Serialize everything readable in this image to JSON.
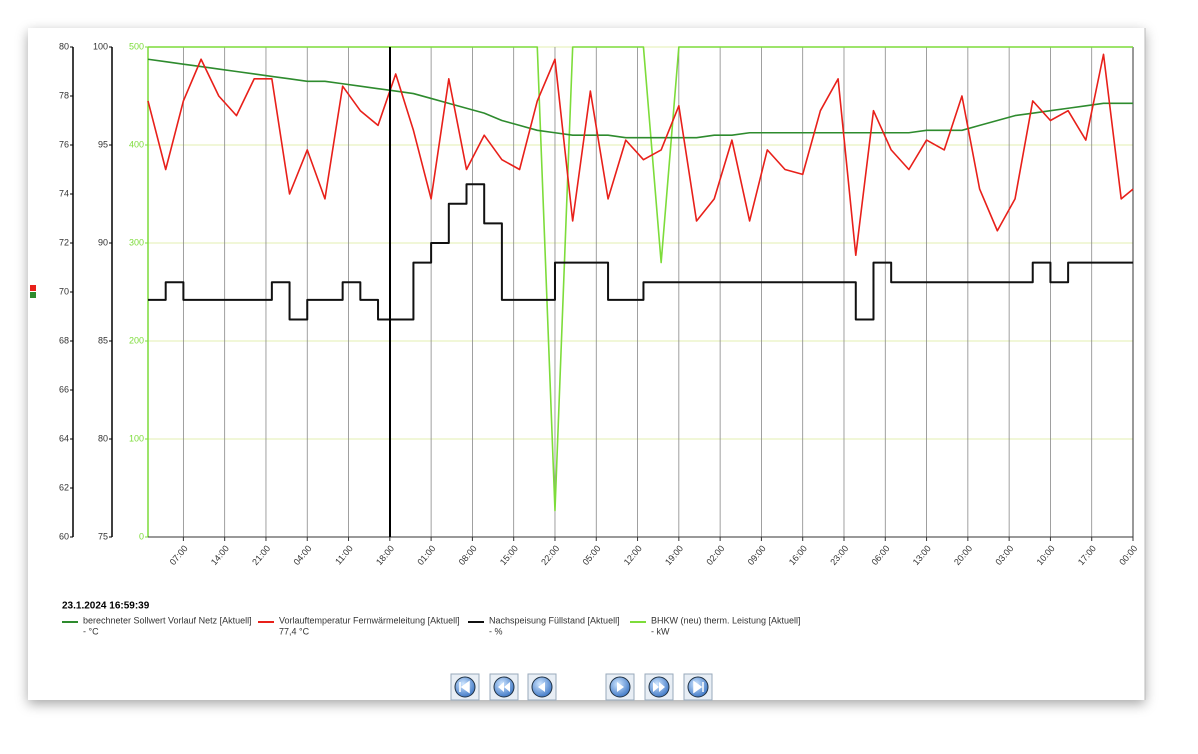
{
  "chart_data": {
    "type": "line",
    "timestamp": "23.1.2024 16:59:39",
    "x": [
      0,
      3,
      6,
      9,
      12,
      15,
      18,
      21,
      24,
      27,
      30,
      33,
      36,
      39,
      42,
      45,
      48,
      51,
      54,
      57,
      60,
      63,
      66,
      69,
      72,
      75,
      78,
      81,
      84,
      87,
      90,
      93,
      96,
      99,
      102,
      105,
      108,
      111,
      114,
      117,
      120,
      123,
      126,
      129,
      132,
      135,
      138,
      141,
      144,
      147,
      150,
      153,
      156,
      159,
      162,
      165,
      167
    ],
    "xlim": [
      0,
      167
    ],
    "xticks": [
      {
        "value": 6,
        "label": "07:00"
      },
      {
        "value": 13,
        "label": "14:00"
      },
      {
        "value": 20,
        "label": "21:00"
      },
      {
        "value": 27,
        "label": "04:00"
      },
      {
        "value": 34,
        "label": "11:00"
      },
      {
        "value": 41,
        "label": "18:00"
      },
      {
        "value": 48,
        "label": "01:00"
      },
      {
        "value": 55,
        "label": "08:00"
      },
      {
        "value": 62,
        "label": "15:00"
      },
      {
        "value": 69,
        "label": "22:00"
      },
      {
        "value": 76,
        "label": "05:00"
      },
      {
        "value": 83,
        "label": "12:00"
      },
      {
        "value": 90,
        "label": "19:00"
      },
      {
        "value": 97,
        "label": "02:00"
      },
      {
        "value": 104,
        "label": "09:00"
      },
      {
        "value": 111,
        "label": "16:00"
      },
      {
        "value": 118,
        "label": "23:00"
      },
      {
        "value": 125,
        "label": "06:00"
      },
      {
        "value": 132,
        "label": "13:00"
      },
      {
        "value": 139,
        "label": "20:00"
      },
      {
        "value": 146,
        "label": "03:00"
      },
      {
        "value": 153,
        "label": "10:00"
      },
      {
        "value": 160,
        "label": "17:00"
      },
      {
        "value": 167,
        "label": "00:00"
      }
    ],
    "ylim": [
      60,
      80
    ],
    "yticks": [
      60,
      62,
      64,
      66,
      68,
      70,
      72,
      74,
      76,
      78,
      80
    ],
    "y2lim": [
      75,
      100
    ],
    "y2ticks": [
      75,
      80,
      85,
      90,
      95,
      100
    ],
    "y3lim": [
      0,
      500
    ],
    "y3ticks": [
      0,
      100,
      200,
      300,
      400,
      500
    ],
    "y3color": "#7ddc3a",
    "grid": true,
    "series": [
      {
        "name": "berechneter Sollwert Vorlauf Netz [Aktuell]",
        "reading": "- °C",
        "color": "#2e8b2e",
        "axis": "y",
        "values": [
          79.5,
          79.4,
          79.3,
          79.2,
          79.1,
          79.0,
          78.9,
          78.8,
          78.7,
          78.6,
          78.6,
          78.5,
          78.4,
          78.3,
          78.2,
          78.1,
          77.9,
          77.7,
          77.5,
          77.3,
          77.0,
          76.8,
          76.6,
          76.5,
          76.4,
          76.4,
          76.4,
          76.3,
          76.3,
          76.3,
          76.3,
          76.3,
          76.4,
          76.4,
          76.5,
          76.5,
          76.5,
          76.5,
          76.5,
          76.5,
          76.5,
          76.5,
          76.5,
          76.5,
          76.6,
          76.6,
          76.6,
          76.8,
          77.0,
          77.2,
          77.3,
          77.4,
          77.5,
          77.6,
          77.7,
          77.7,
          77.7
        ]
      },
      {
        "name": "Vorlauftemperatur Fernwärmeleitung [Aktuell]",
        "reading": "77,4 °C",
        "color": "#e8201a",
        "axis": "y",
        "values": [
          77.8,
          75.0,
          77.8,
          79.5,
          78.0,
          77.2,
          78.7,
          78.7,
          74.0,
          75.8,
          73.8,
          78.4,
          77.4,
          76.8,
          78.9,
          76.6,
          73.8,
          78.7,
          75.0,
          76.4,
          75.4,
          75.0,
          77.8,
          79.5,
          72.9,
          78.2,
          73.8,
          76.2,
          75.4,
          75.8,
          77.6,
          72.9,
          73.8,
          76.2,
          72.9,
          75.8,
          75.0,
          74.8,
          77.4,
          78.7,
          71.5,
          77.4,
          75.8,
          75.0,
          76.2,
          75.8,
          78.0,
          74.2,
          72.5,
          73.8,
          77.8,
          77.0,
          77.4,
          76.2,
          79.7,
          73.8,
          74.2
        ]
      },
      {
        "name": "Nachspeisung Füllstand [Aktuell]",
        "reading": "- %",
        "color": "#111111",
        "axis": "y2",
        "step": true,
        "values": [
          87.1,
          88.0,
          87.1,
          87.1,
          87.1,
          87.1,
          87.1,
          88.0,
          86.1,
          87.1,
          87.1,
          88.0,
          87.1,
          86.1,
          86.1,
          89.0,
          90.0,
          92.0,
          93.0,
          91.0,
          87.1,
          87.1,
          87.1,
          89.0,
          89.0,
          89.0,
          87.1,
          87.1,
          88.0,
          88.0,
          88.0,
          88.0,
          88.0,
          88.0,
          88.0,
          88.0,
          88.0,
          88.0,
          88.0,
          88.0,
          86.1,
          89.0,
          88.0,
          88.0,
          88.0,
          88.0,
          88.0,
          88.0,
          88.0,
          88.0,
          89.0,
          88.0,
          89.0,
          89.0,
          89.0,
          89.0,
          89.0
        ]
      },
      {
        "name": "BHKW (neu) therm. Leistung [Aktuell]",
        "reading": "- kW",
        "color": "#7ddc3a",
        "axis": "y3",
        "values": [
          500,
          500,
          500,
          500,
          500,
          500,
          500,
          500,
          500,
          500,
          500,
          500,
          500,
          500,
          500,
          500,
          500,
          500,
          500,
          500,
          500,
          500,
          500,
          27,
          500,
          500,
          500,
          500,
          500,
          280,
          500,
          500,
          500,
          500,
          500,
          500,
          500,
          500,
          500,
          500,
          500,
          500,
          500,
          500,
          500,
          500,
          500,
          500,
          500,
          500,
          500,
          500,
          500,
          500,
          500,
          500,
          500
        ]
      }
    ]
  }
}
